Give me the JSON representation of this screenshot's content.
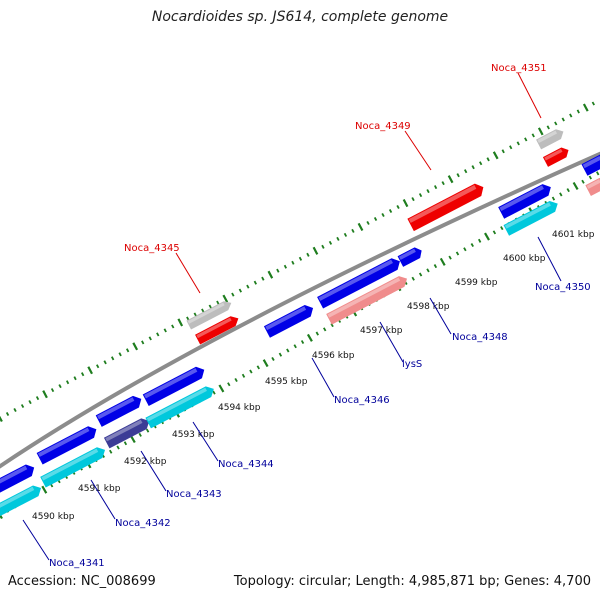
{
  "title": "Nocardioides sp. JS614, complete genome",
  "footer": {
    "accession": "Accession: NC_008699",
    "summary": "Topology: circular; Length: 4,985,871 bp; Genes: 4,700"
  },
  "colors": {
    "backbone": "#8c8c8c",
    "ticks": "#1e7d1e",
    "forward_cds": "#0000e6",
    "reverse_cds": "#00c8dc",
    "rna_red": "#ee0000",
    "pink": "#f08c8c",
    "grey": "#bdbdbd",
    "purple": "#3c3c96",
    "label_blue": "#00009b",
    "label_red": "#dc0000"
  },
  "kbp_labels": [
    "4590 kbp",
    "4591 kbp",
    "4592 kbp",
    "4593 kbp",
    "4594 kbp",
    "4595 kbp",
    "4596 kbp",
    "4597 kbp",
    "4598 kbp",
    "4599 kbp",
    "4600 kbp",
    "4601 kbp"
  ],
  "gene_labels": [
    {
      "text": "Noca_4351",
      "color": "red"
    },
    {
      "text": "Noca_4349",
      "color": "red"
    },
    {
      "text": "Noca_4345",
      "color": "red"
    },
    {
      "text": "Noca_4350",
      "color": "blue"
    },
    {
      "text": "Noca_4348",
      "color": "blue"
    },
    {
      "text": "lysS",
      "color": "blue"
    },
    {
      "text": "Noca_4346",
      "color": "blue"
    },
    {
      "text": "Noca_4344",
      "color": "blue"
    },
    {
      "text": "Noca_4343",
      "color": "blue"
    },
    {
      "text": "Noca_4342",
      "color": "blue"
    },
    {
      "text": "Noca_4341",
      "color": "blue"
    }
  ],
  "features": [
    {
      "type": "forward_cds"
    },
    {
      "type": "reverse_cds"
    },
    {
      "type": "rna_red"
    },
    {
      "type": "pink"
    },
    {
      "type": "grey"
    },
    {
      "type": "purple"
    }
  ]
}
